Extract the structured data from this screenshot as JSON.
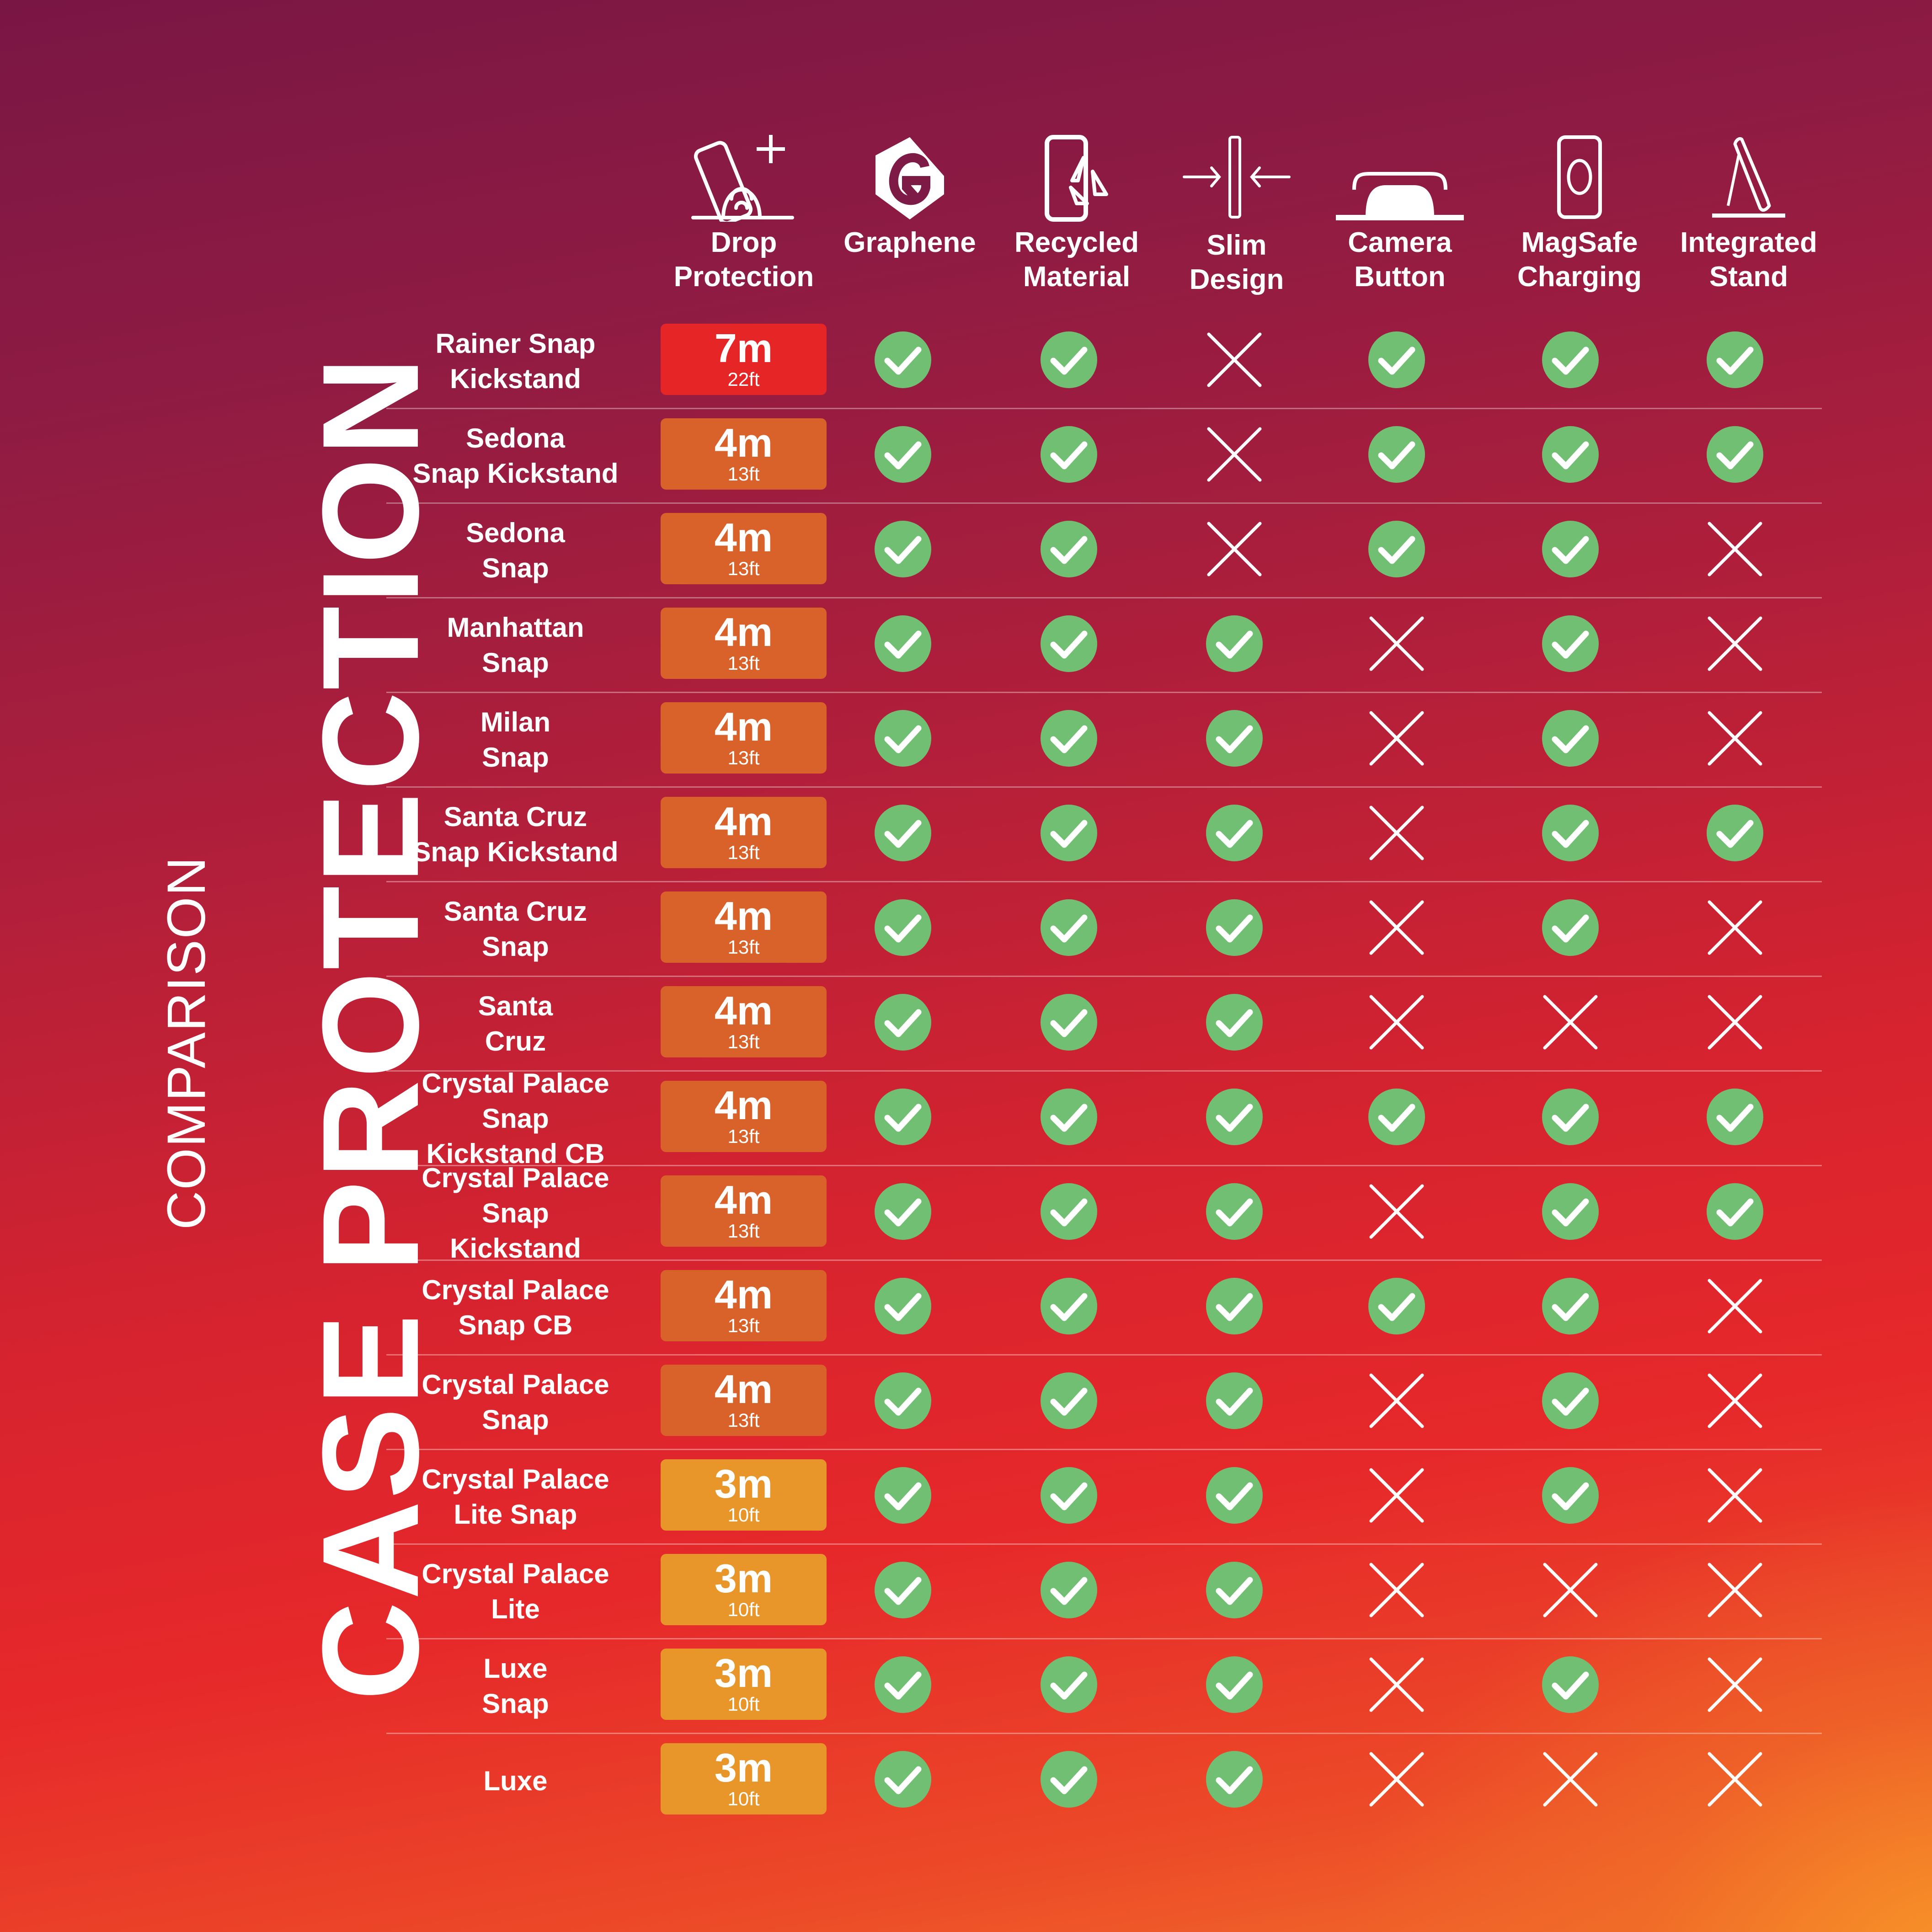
{
  "title": {
    "eyebrow": "COMPARISON",
    "main": "CASE PROTECTION"
  },
  "colors": {
    "check_green": "#70bf73",
    "drop_7m": "#e62626",
    "drop_4m": "#d9622a",
    "drop_3m": "#e8952a",
    "divider": "rgba(255,255,255,0.35)"
  },
  "columns": [
    {
      "key": "drop",
      "icon": "drop-protection-icon",
      "label_line1": "Drop",
      "label_line2": "Protection"
    },
    {
      "key": "graphene",
      "icon": "graphene-icon",
      "label_line1": "Graphene",
      "label_line2": ""
    },
    {
      "key": "recycled",
      "icon": "recycled-material-icon",
      "label_line1": "Recycled",
      "label_line2": "Material"
    },
    {
      "key": "slim",
      "icon": "slim-design-icon",
      "label_line1": "Slim",
      "label_line2": "Design"
    },
    {
      "key": "camera",
      "icon": "camera-button-icon",
      "label_line1": "Camera",
      "label_line2": "Button"
    },
    {
      "key": "magsafe",
      "icon": "magsafe-charging-icon",
      "label_line1": "MagSafe",
      "label_line2": "Charging"
    },
    {
      "key": "stand",
      "icon": "integrated-stand-icon",
      "label_line1": "Integrated",
      "label_line2": "Stand"
    }
  ],
  "products": [
    {
      "name_line1": "Rainer Snap",
      "name_line2": "Kickstand",
      "drop_m": "7m",
      "drop_ft": "22ft",
      "tier": "7m",
      "features": [
        true,
        true,
        false,
        true,
        true,
        true
      ]
    },
    {
      "name_line1": "Sedona",
      "name_line2": "Snap Kickstand",
      "drop_m": "4m",
      "drop_ft": "13ft",
      "tier": "4m",
      "features": [
        true,
        true,
        false,
        true,
        true,
        true
      ]
    },
    {
      "name_line1": "Sedona",
      "name_line2": "Snap",
      "drop_m": "4m",
      "drop_ft": "13ft",
      "tier": "4m",
      "features": [
        true,
        true,
        false,
        true,
        true,
        false
      ]
    },
    {
      "name_line1": "Manhattan",
      "name_line2": "Snap",
      "drop_m": "4m",
      "drop_ft": "13ft",
      "tier": "4m",
      "features": [
        true,
        true,
        true,
        false,
        true,
        false
      ]
    },
    {
      "name_line1": "Milan",
      "name_line2": "Snap",
      "drop_m": "4m",
      "drop_ft": "13ft",
      "tier": "4m",
      "features": [
        true,
        true,
        true,
        false,
        true,
        false
      ]
    },
    {
      "name_line1": "Santa Cruz",
      "name_line2": "Snap Kickstand",
      "drop_m": "4m",
      "drop_ft": "13ft",
      "tier": "4m",
      "features": [
        true,
        true,
        true,
        false,
        true,
        true
      ]
    },
    {
      "name_line1": "Santa Cruz",
      "name_line2": "Snap",
      "drop_m": "4m",
      "drop_ft": "13ft",
      "tier": "4m",
      "features": [
        true,
        true,
        true,
        false,
        true,
        false
      ]
    },
    {
      "name_line1": "Santa",
      "name_line2": "Cruz",
      "drop_m": "4m",
      "drop_ft": "13ft",
      "tier": "4m",
      "features": [
        true,
        true,
        true,
        false,
        false,
        false
      ]
    },
    {
      "name_line1": "Crystal Palace Snap",
      "name_line2": "Kickstand CB",
      "drop_m": "4m",
      "drop_ft": "13ft",
      "tier": "4m",
      "features": [
        true,
        true,
        true,
        true,
        true,
        true
      ]
    },
    {
      "name_line1": "Crystal Palace Snap",
      "name_line2": "Kickstand",
      "drop_m": "4m",
      "drop_ft": "13ft",
      "tier": "4m",
      "features": [
        true,
        true,
        true,
        false,
        true,
        true
      ]
    },
    {
      "name_line1": "Crystal Palace",
      "name_line2": "Snap CB",
      "drop_m": "4m",
      "drop_ft": "13ft",
      "tier": "4m",
      "features": [
        true,
        true,
        true,
        true,
        true,
        false
      ]
    },
    {
      "name_line1": "Crystal Palace",
      "name_line2": "Snap",
      "drop_m": "4m",
      "drop_ft": "13ft",
      "tier": "4m",
      "features": [
        true,
        true,
        true,
        false,
        true,
        false
      ]
    },
    {
      "name_line1": "Crystal Palace",
      "name_line2": "Lite Snap",
      "drop_m": "3m",
      "drop_ft": "10ft",
      "tier": "3m",
      "features": [
        true,
        true,
        true,
        false,
        true,
        false
      ]
    },
    {
      "name_line1": "Crystal Palace",
      "name_line2": "Lite",
      "drop_m": "3m",
      "drop_ft": "10ft",
      "tier": "3m",
      "features": [
        true,
        true,
        true,
        false,
        false,
        false
      ]
    },
    {
      "name_line1": "Luxe",
      "name_line2": "Snap",
      "drop_m": "3m",
      "drop_ft": "10ft",
      "tier": "3m",
      "features": [
        true,
        true,
        true,
        false,
        true,
        false
      ]
    },
    {
      "name_line1": "Luxe",
      "name_line2": "",
      "drop_m": "3m",
      "drop_ft": "10ft",
      "tier": "3m",
      "features": [
        true,
        true,
        true,
        false,
        false,
        false
      ]
    }
  ],
  "chart_data": {
    "type": "table",
    "title": "CASE PROTECTION",
    "subtitle": "COMPARISON",
    "columns": [
      "Product",
      "Drop Protection",
      "Graphene",
      "Recycled Material",
      "Slim Design",
      "Camera Button",
      "MagSafe Charging",
      "Integrated Stand"
    ],
    "rows": [
      [
        "Rainer Snap Kickstand",
        "7m / 22ft",
        true,
        true,
        false,
        true,
        true,
        true
      ],
      [
        "Sedona Snap Kickstand",
        "4m / 13ft",
        true,
        true,
        false,
        true,
        true,
        true
      ],
      [
        "Sedona Snap",
        "4m / 13ft",
        true,
        true,
        false,
        true,
        true,
        false
      ],
      [
        "Manhattan Snap",
        "4m / 13ft",
        true,
        true,
        true,
        false,
        true,
        false
      ],
      [
        "Milan Snap",
        "4m / 13ft",
        true,
        true,
        true,
        false,
        true,
        false
      ],
      [
        "Santa Cruz Snap Kickstand",
        "4m / 13ft",
        true,
        true,
        true,
        false,
        true,
        true
      ],
      [
        "Santa Cruz Snap",
        "4m / 13ft",
        true,
        true,
        true,
        false,
        true,
        false
      ],
      [
        "Santa Cruz",
        "4m / 13ft",
        true,
        true,
        true,
        false,
        false,
        false
      ],
      [
        "Crystal Palace Snap Kickstand CB",
        "4m / 13ft",
        true,
        true,
        true,
        true,
        true,
        true
      ],
      [
        "Crystal Palace Snap Kickstand",
        "4m / 13ft",
        true,
        true,
        true,
        false,
        true,
        true
      ],
      [
        "Crystal Palace Snap CB",
        "4m / 13ft",
        true,
        true,
        true,
        true,
        true,
        false
      ],
      [
        "Crystal Palace Snap",
        "4m / 13ft",
        true,
        true,
        true,
        false,
        true,
        false
      ],
      [
        "Crystal Palace Lite Snap",
        "3m / 10ft",
        true,
        true,
        true,
        false,
        true,
        false
      ],
      [
        "Crystal Palace Lite",
        "3m / 10ft",
        true,
        true,
        true,
        false,
        false,
        false
      ],
      [
        "Luxe Snap",
        "3m / 10ft",
        true,
        true,
        true,
        false,
        true,
        false
      ],
      [
        "Luxe",
        "3m / 10ft",
        true,
        true,
        true,
        false,
        false,
        false
      ]
    ]
  }
}
